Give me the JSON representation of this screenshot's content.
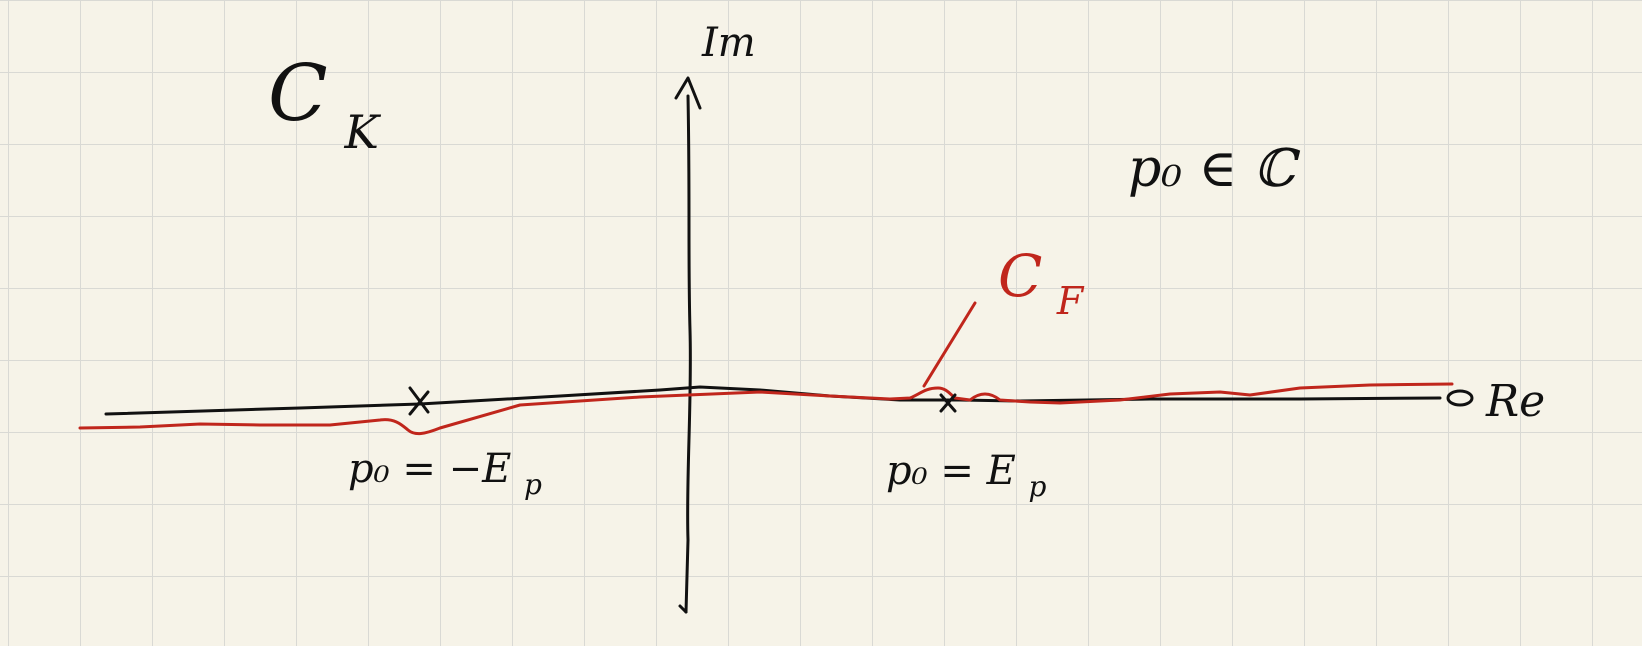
{
  "contour_label_top_left": "C",
  "contour_label_top_left_sub": "K",
  "imag_axis_label": "Im",
  "real_axis_label": "Re",
  "domain_note": "p₀ ∈ ℂ",
  "red_contour_label": "C",
  "red_contour_label_sub": "F",
  "pole_left_label": "p₀ = −E",
  "pole_left_label_sub": "p",
  "pole_right_label": "p₀ = E",
  "pole_right_label_sub": "p",
  "colors": {
    "ink": "#111111",
    "red_ink": "#c0261c",
    "paper": "#f6f3e8",
    "grid": "#d9d9d4"
  },
  "icons": [
    "cross-mark-icon",
    "open-circle-icon"
  ]
}
